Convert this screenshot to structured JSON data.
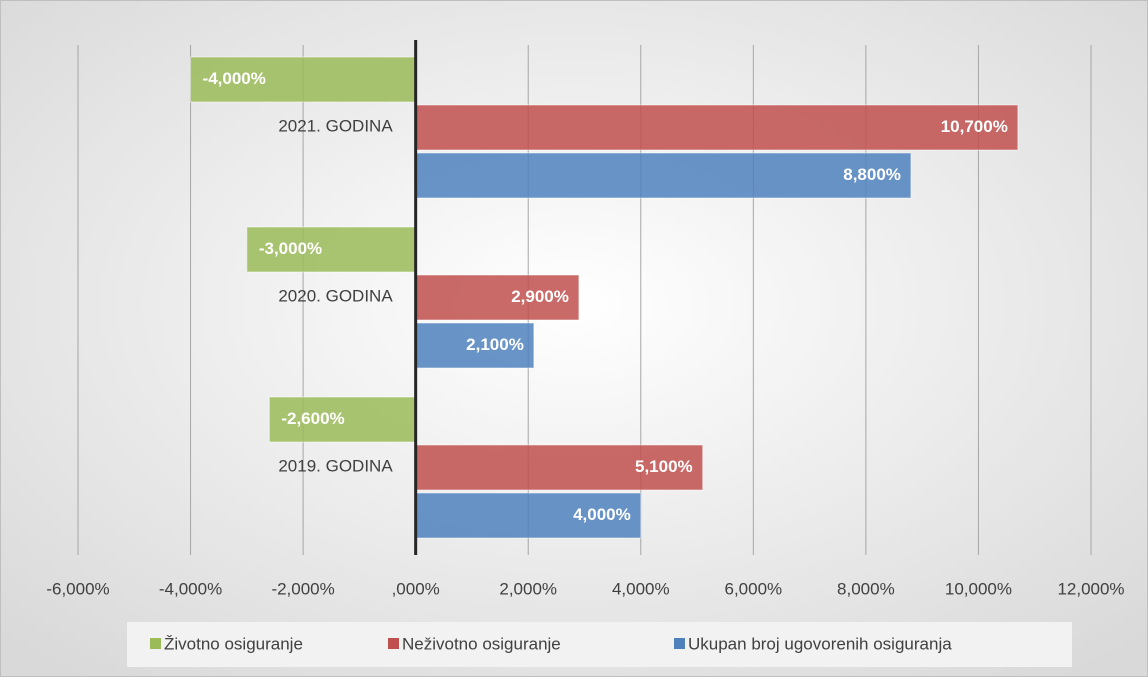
{
  "chart_data": {
    "type": "barh",
    "categories": [
      "2021. GODINA",
      "2020. GODINA",
      "2019. GODINA"
    ],
    "series": [
      {
        "name": "Životno osiguranje",
        "color": "#9bbb59",
        "values": [
          -4,
          -3,
          -2.6
        ],
        "value_labels": [
          "-4,000%",
          "-3,000%",
          "-2,600%"
        ]
      },
      {
        "name": "Neživotno osiguranje",
        "color": "#c0504d",
        "values": [
          10.7,
          2.9,
          5.1
        ],
        "value_labels": [
          "10,700%",
          "2,900%",
          "5,100%"
        ]
      },
      {
        "name": "Ukupan broj ugovorenih osiguranja",
        "color": "#4f81bd",
        "values": [
          8.8,
          2.1,
          4.0
        ],
        "value_labels": [
          "8,800%",
          "2,100%",
          "4,000%"
        ]
      }
    ],
    "xlim": [
      -6,
      12
    ],
    "xticks": [
      {
        "value": -6,
        "label": "-6,000%"
      },
      {
        "value": -4,
        "label": "-4,000%"
      },
      {
        "value": -2,
        "label": "-2,000%"
      },
      {
        "value": 0,
        "label": ",000%"
      },
      {
        "value": 2,
        "label": "2,000%"
      },
      {
        "value": 4,
        "label": "4,000%"
      },
      {
        "value": 6,
        "label": "6,000%"
      },
      {
        "value": 8,
        "label": "8,000%"
      },
      {
        "value": 10,
        "label": "10,000%"
      },
      {
        "value": 12,
        "label": "12,000%"
      }
    ],
    "grid": true,
    "legend": "bottom"
  }
}
